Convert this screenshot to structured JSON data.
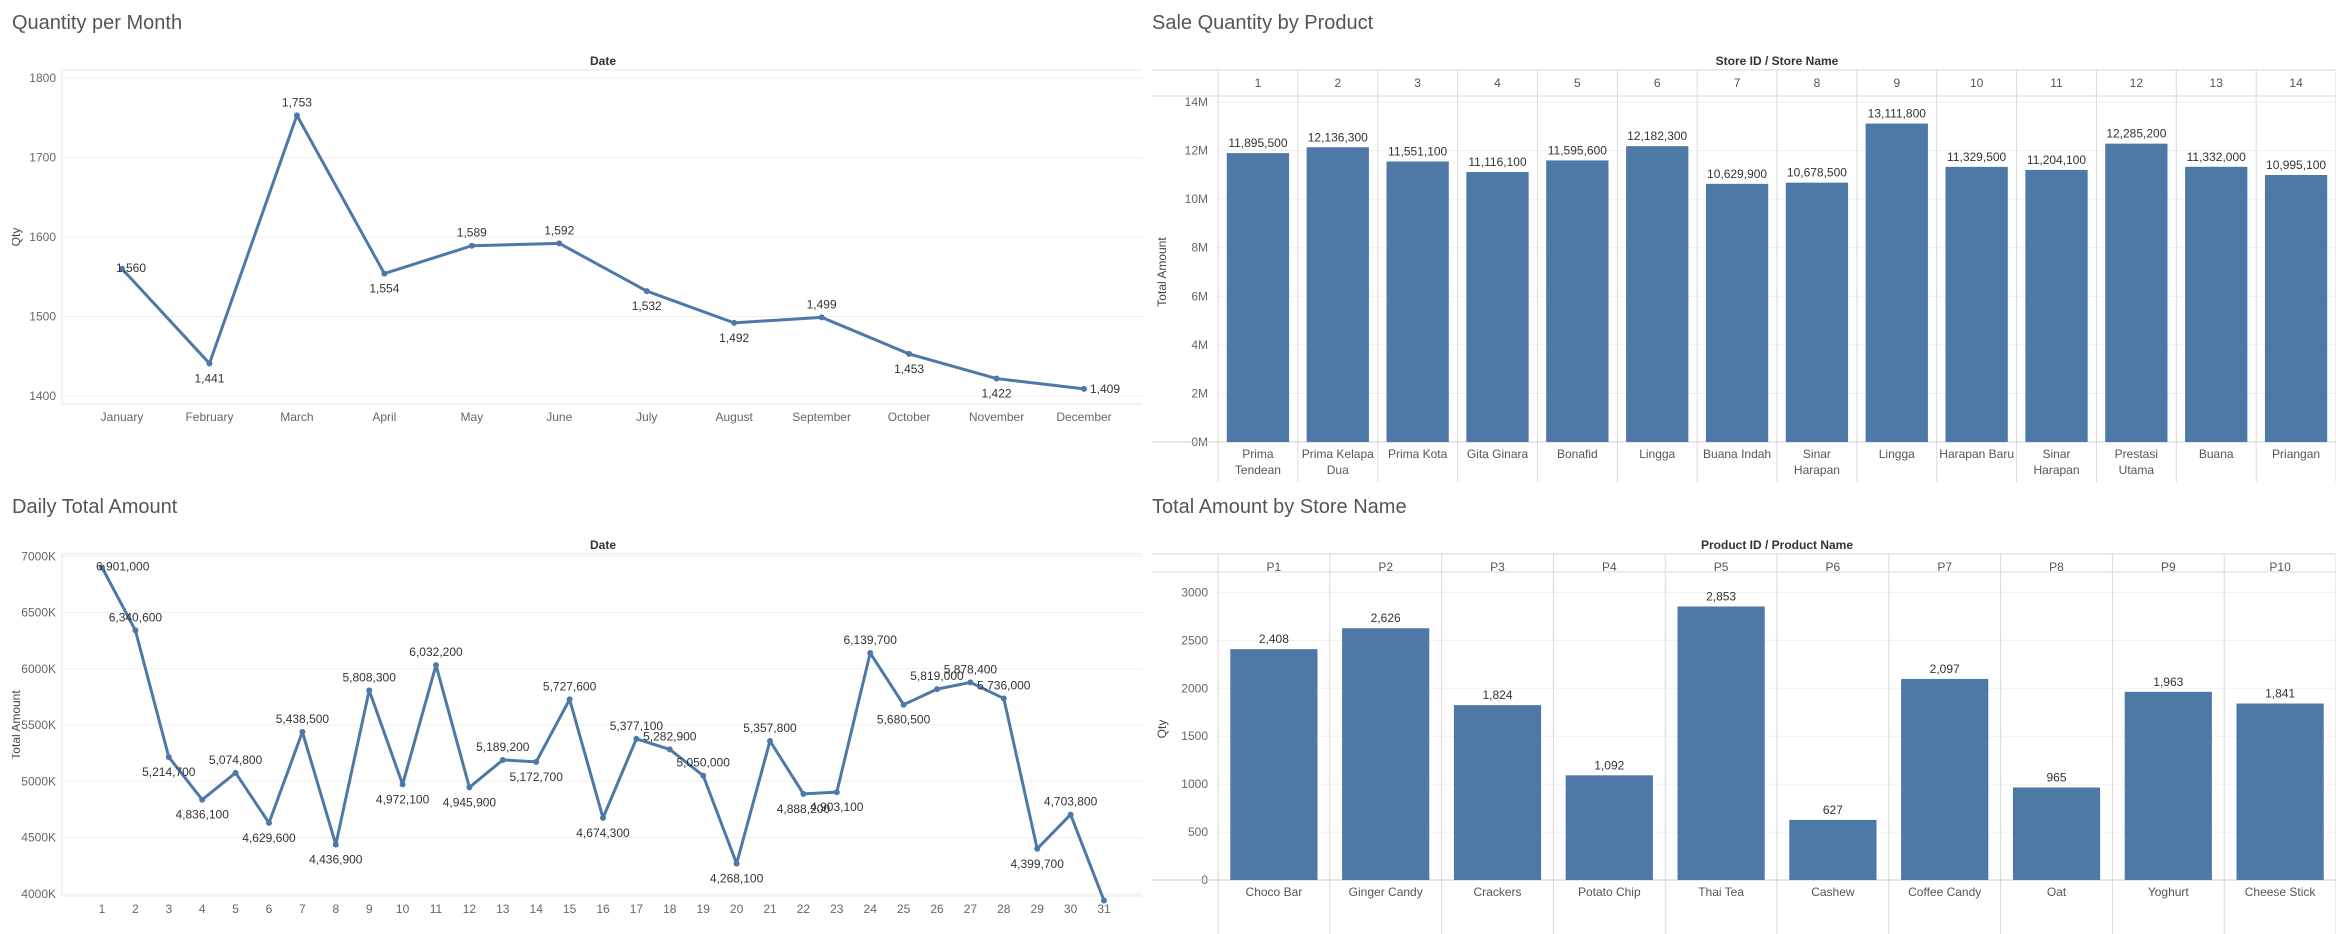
{
  "chart_data": [
    {
      "id": "monthly",
      "type": "line",
      "title": "Quantity per Month",
      "header": "Date",
      "ylabel": "Qty",
      "ylim": [
        1390,
        1810
      ],
      "yticks": [
        1400,
        1500,
        1600,
        1700,
        1800
      ],
      "ytick_labels": [
        "1400",
        "1500",
        "1600",
        "1700",
        "1800"
      ],
      "categories": [
        "January",
        "February",
        "March",
        "April",
        "May",
        "June",
        "July",
        "August",
        "September",
        "October",
        "November",
        "December"
      ],
      "values": [
        1560,
        1441,
        1753,
        1554,
        1589,
        1592,
        1532,
        1492,
        1499,
        1453,
        1422,
        1409
      ],
      "data_labels": [
        "1,560",
        "1,441",
        "1,753",
        "1,554",
        "1,589",
        "1,592",
        "1,532",
        "1,492",
        "1,499",
        "1,453",
        "1,422",
        "1,409"
      ],
      "color": "#4e79a7"
    },
    {
      "id": "store",
      "type": "bar",
      "title": "Sale Quantity by Product",
      "header": "Store ID  /  Store Name",
      "ylabel": "Total Amount",
      "ylim": [
        0,
        14000000
      ],
      "yticks": [
        0,
        2000000,
        4000000,
        6000000,
        8000000,
        10000000,
        12000000,
        14000000
      ],
      "ytick_labels": [
        "0M",
        "2M",
        "4M",
        "6M",
        "8M",
        "10M",
        "12M",
        "14M"
      ],
      "top_categories": [
        "1",
        "2",
        "3",
        "4",
        "5",
        "6",
        "7",
        "8",
        "9",
        "10",
        "11",
        "12",
        "13",
        "14"
      ],
      "bottom_categories": [
        [
          "Prima",
          "Tendean"
        ],
        [
          "Prima Kelapa",
          "Dua"
        ],
        [
          "Prima Kota"
        ],
        [
          "Gita Ginara"
        ],
        [
          "Bonafid"
        ],
        [
          "Lingga"
        ],
        [
          "Buana Indah"
        ],
        [
          "Sinar",
          "Harapan"
        ],
        [
          "Lingga"
        ],
        [
          "Harapan Baru"
        ],
        [
          "Sinar",
          "Harapan"
        ],
        [
          "Prestasi",
          "Utama"
        ],
        [
          "Buana"
        ],
        [
          "Priangan"
        ]
      ],
      "values": [
        11895500,
        12136300,
        11551100,
        11116100,
        11595600,
        12182300,
        10629900,
        10678500,
        13111800,
        11329500,
        11204100,
        12285200,
        11332000,
        10995100
      ],
      "data_labels": [
        "11,895,500",
        "12,136,300",
        "11,551,100",
        "11,116,100",
        "11,595,600",
        "12,182,300",
        "10,629,900",
        "10,678,500",
        "13,111,800",
        "11,329,500",
        "11,204,100",
        "12,285,200",
        "11,332,000",
        "10,995,100"
      ],
      "color": "#4e79a7"
    },
    {
      "id": "daily",
      "type": "line",
      "title": "Daily Total Amount",
      "header": "Date",
      "ylabel": "Total Amount",
      "ylim": [
        3980000,
        7020000
      ],
      "yticks": [
        4000000,
        4500000,
        5000000,
        5500000,
        6000000,
        6500000,
        7000000
      ],
      "ytick_labels": [
        "4000K",
        "4500K",
        "5000K",
        "5500K",
        "6000K",
        "6500K",
        "7000K"
      ],
      "categories": [
        "1",
        "2",
        "3",
        "4",
        "5",
        "6",
        "7",
        "8",
        "9",
        "10",
        "11",
        "12",
        "13",
        "14",
        "15",
        "16",
        "17",
        "18",
        "19",
        "20",
        "21",
        "22",
        "23",
        "24",
        "25",
        "26",
        "27",
        "28",
        "29",
        "30",
        "31"
      ],
      "values": [
        6901000,
        6340600,
        5214700,
        4836100,
        5074800,
        4629600,
        5438500,
        4436900,
        5808300,
        4972100,
        6032200,
        4945900,
        5189200,
        5172700,
        5727600,
        4674300,
        5377100,
        5282900,
        5050000,
        4268100,
        5357800,
        4888200,
        4903100,
        6139700,
        5680500,
        5819000,
        5878400,
        5736000,
        4399700,
        4703800,
        3940000
      ],
      "data_labels": [
        "6,901,000",
        "6,340,600",
        "5,214,700",
        "4,836,100",
        "5,074,800",
        "4,629,600",
        "5,438,500",
        "4,436,900",
        "5,808,300",
        "4,972,100",
        "6,032,200",
        "4,945,900",
        "5,189,200",
        "5,172,700",
        "5,727,600",
        "4,674,300",
        "5,377,100",
        "5,282,900",
        "5,050,000",
        "4,268,100",
        "5,357,800",
        "4,888,200",
        "4,903,100",
        "6,139,700",
        "5,680,500",
        "5,819,000",
        "5,878,400",
        "5,736,000",
        "4,399,700",
        "4,703,800",
        ""
      ],
      "color": "#4e79a7"
    },
    {
      "id": "product",
      "type": "bar",
      "title": "Total Amount by Store Name",
      "header": "Product ID / Product Name",
      "ylabel": "Qty",
      "ylim": [
        0,
        3150
      ],
      "yticks": [
        0,
        500,
        1000,
        1500,
        2000,
        2500,
        3000
      ],
      "ytick_labels": [
        "0",
        "500",
        "1000",
        "1500",
        "2000",
        "2500",
        "3000"
      ],
      "top_categories": [
        "P1",
        "P2",
        "P3",
        "P4",
        "P5",
        "P6",
        "P7",
        "P8",
        "P9",
        "P10"
      ],
      "bottom_categories": [
        [
          "Choco Bar"
        ],
        [
          "Ginger Candy"
        ],
        [
          "Crackers"
        ],
        [
          "Potato Chip"
        ],
        [
          "Thai Tea"
        ],
        [
          "Cashew"
        ],
        [
          "Coffee Candy"
        ],
        [
          "Oat"
        ],
        [
          "Yoghurt"
        ],
        [
          "Cheese Stick"
        ]
      ],
      "values": [
        2408,
        2626,
        1824,
        1092,
        2853,
        627,
        2097,
        965,
        1963,
        1841
      ],
      "data_labels": [
        "2,408",
        "2,626",
        "1,824",
        "1,092",
        "2,853",
        "627",
        "2,097",
        "965",
        "1,963",
        "1,841"
      ],
      "color": "#4e79a7"
    }
  ]
}
